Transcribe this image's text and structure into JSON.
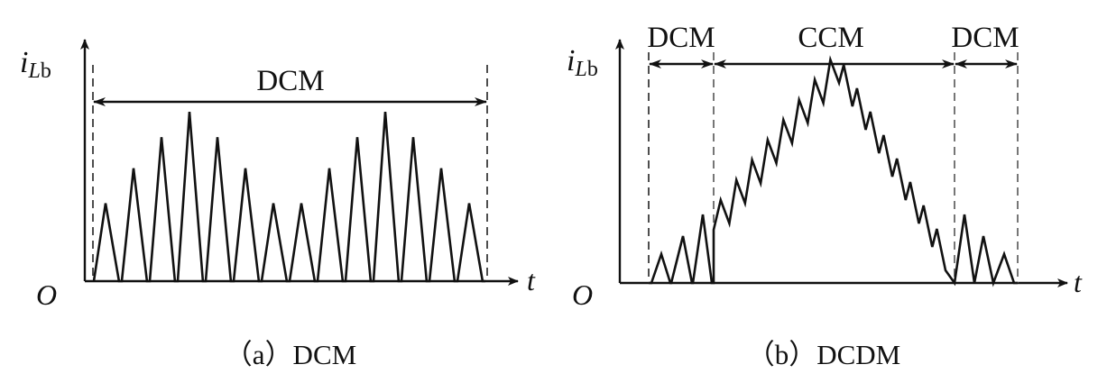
{
  "panel_a": {
    "y_axis_label": {
      "main": "i",
      "subscript_italic": "L",
      "subscript_roman": "b"
    },
    "origin_label": "O",
    "x_axis_label": "t",
    "region_label": "DCM",
    "caption": "（a）DCM",
    "pulse_peaks": [
      0.4,
      0.58,
      0.74,
      0.87,
      0.74,
      0.58,
      0.4,
      0.4,
      0.58,
      0.74,
      0.87,
      0.74,
      0.58,
      0.4
    ]
  },
  "panel_b": {
    "y_axis_label": {
      "main": "i",
      "subscript_italic": "L",
      "subscript_roman": "b"
    },
    "origin_label": "O",
    "x_axis_label": "t",
    "region_labels": [
      "DCM",
      "CCM",
      "DCM"
    ],
    "caption": "（b）DCDM",
    "ccm_ripples_per_side": 8
  },
  "colors": {
    "line": "#111111",
    "background": "#ffffff"
  }
}
